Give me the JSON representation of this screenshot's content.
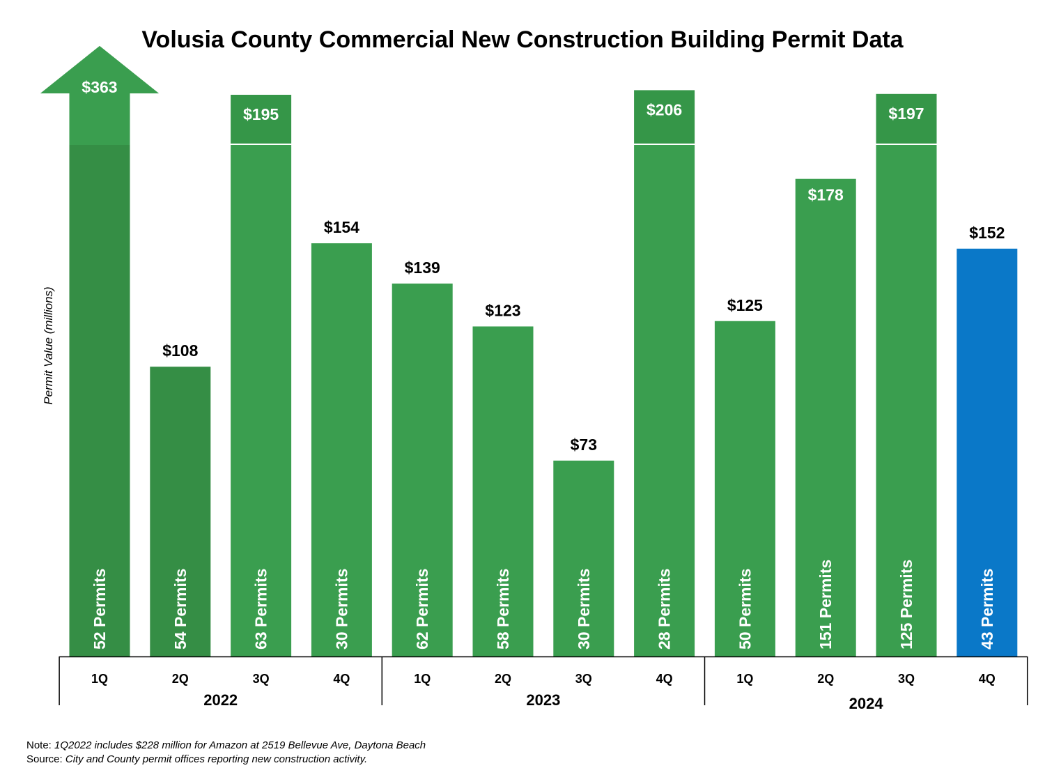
{
  "chart_data": {
    "type": "bar",
    "title": "Volusia County Commercial New Construction Building Permit Data",
    "ylabel": "Permit Value (millions)",
    "xlabel": "",
    "categories": [
      "1Q",
      "2Q",
      "3Q",
      "4Q",
      "1Q",
      "2Q",
      "3Q",
      "4Q",
      "1Q",
      "2Q",
      "3Q",
      "4Q"
    ],
    "years": [
      {
        "label": "2022",
        "start": 0,
        "end": 3
      },
      {
        "label": "2023",
        "start": 4,
        "end": 7
      },
      {
        "label": "2024",
        "start": 8,
        "end": 11
      }
    ],
    "values": [
      363,
      108,
      195,
      154,
      139,
      123,
      73,
      206,
      125,
      178,
      197,
      152
    ],
    "value_labels": [
      "$363",
      "$108",
      "$195",
      "$154",
      "$139",
      "$123",
      "$73",
      "$206",
      "$125",
      "$178",
      "$197",
      "$152"
    ],
    "permit_labels": [
      "52 Permits",
      "54 Permits",
      "63 Permits",
      "30 Permits",
      "62 Permits",
      "58 Permits",
      "30 Permits",
      "28 Permits",
      "50 Permits",
      "151 Permits",
      "125 Permits",
      "43 Permits"
    ],
    "axis_break_above": 180,
    "arrow_bars": [
      0
    ],
    "ylim": [
      0,
      220
    ],
    "grid": false,
    "colors": {
      "bar": "#3a9e4f",
      "bar_dark": "#358e45",
      "highlight": "#0a78c8",
      "highlight_index": 11
    }
  },
  "notes": {
    "note_label": "Note:",
    "note_text": "1Q2022 includes $228 million for Amazon at 2519 Bellevue Ave, Daytona Beach",
    "source_label": "Source:",
    "source_text": "City and County permit offices reporting new construction activity."
  }
}
